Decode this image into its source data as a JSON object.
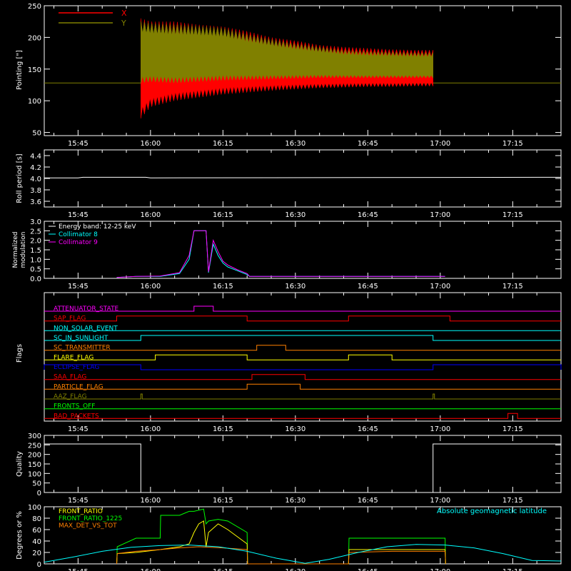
{
  "time_axis": {
    "tick_labels": [
      "15:45",
      "16:00",
      "16:15",
      "16:30",
      "16:45",
      "17:00",
      "17:15"
    ],
    "tick_minutes": [
      945,
      960,
      975,
      990,
      1005,
      1020,
      1035
    ],
    "range_minutes": [
      938,
      1045
    ]
  },
  "colors": {
    "white": "#ffffff",
    "red": "#ff0000",
    "olive": "#808000",
    "cyan": "#00ffff",
    "magenta": "#ff00ff",
    "green": "#00ff00",
    "yellow": "#ffff00",
    "orange": "#ff8000",
    "blue": "#0000ff"
  },
  "chart_data": [
    {
      "id": "pointing",
      "type": "area",
      "ylabel": "Pointing [\"]",
      "ylim": [
        45,
        250
      ],
      "yticks": [
        50,
        100,
        150,
        200,
        250
      ],
      "legend": [
        "X",
        "Y"
      ],
      "legend_position": "top-left",
      "baseline_value": 128,
      "series": [
        {
          "name": "X",
          "color": "#ff0000",
          "x": [
            958,
            960,
            965,
            970,
            975,
            980,
            985,
            990,
            995,
            1000,
            1005,
            1010,
            1015,
            1018.5
          ],
          "low": [
            72,
            90,
            100,
            105,
            110,
            113,
            116,
            118,
            120,
            121,
            122,
            122,
            123,
            123
          ],
          "high": [
            230,
            225,
            225,
            220,
            217,
            210,
            200,
            195,
            188,
            185,
            183,
            181,
            180,
            180
          ]
        },
        {
          "name": "Y",
          "color": "#808000",
          "x": [
            958,
            960,
            965,
            970,
            975,
            980,
            985,
            990,
            995,
            1000,
            1005,
            1010,
            1015,
            1018.5
          ],
          "low": [
            128,
            130,
            128,
            130,
            132,
            133,
            134,
            135,
            136,
            136,
            136,
            136,
            136,
            136
          ],
          "high": [
            225,
            222,
            220,
            218,
            215,
            205,
            197,
            190,
            185,
            180,
            178,
            177,
            176,
            176
          ]
        }
      ]
    },
    {
      "id": "roll",
      "type": "line",
      "ylabel": "Roll period [s]",
      "ylim": [
        3.5,
        4.5
      ],
      "yticks": [
        3.6,
        3.8,
        4.0,
        4.2,
        4.4
      ],
      "series": [
        {
          "name": "",
          "color": "#ffffff",
          "x": [
            938,
            945,
            946,
            959,
            960,
            1045
          ],
          "y": [
            4.01,
            4.01,
            4.02,
            4.02,
            4.01,
            4.02
          ]
        }
      ]
    },
    {
      "id": "modulation",
      "type": "line",
      "ylabel": "Normalized modulation",
      "ylim": [
        0,
        3.0
      ],
      "yticks": [
        0.0,
        0.5,
        1.0,
        1.5,
        2.0,
        2.5,
        3.0
      ],
      "legend": [
        "Energy band: 12-25 keV",
        "Collimator 8",
        "Collimator 9"
      ],
      "legend_colors": [
        "#ffffff",
        "#00ffff",
        "#ff00ff"
      ],
      "series": [
        {
          "name": "Collimator 8",
          "color": "#00ffff",
          "x": [
            953,
            957,
            962,
            966,
            968,
            969,
            970,
            971,
            971.5,
            972,
            973,
            974,
            975,
            976,
            978,
            980,
            980.5,
            1001,
            1021
          ],
          "y": [
            0.05,
            0.1,
            0.1,
            0.25,
            1.0,
            2.5,
            2.5,
            2.5,
            2.5,
            0.3,
            1.8,
            1.2,
            0.8,
            0.6,
            0.4,
            0.2,
            0.1,
            0.1,
            0.1
          ]
        },
        {
          "name": "Collimator 9",
          "color": "#ff00ff",
          "x": [
            953,
            957,
            962,
            966,
            968,
            969,
            970,
            971,
            971.5,
            972,
            973,
            974,
            975,
            976,
            978,
            980,
            980.5,
            1001,
            1021
          ],
          "y": [
            0.05,
            0.1,
            0.12,
            0.3,
            1.2,
            2.5,
            2.5,
            2.5,
            2.5,
            0.35,
            2.0,
            1.4,
            0.9,
            0.7,
            0.45,
            0.25,
            0.1,
            0.1,
            0.1
          ]
        }
      ]
    },
    {
      "id": "flags",
      "type": "line",
      "ylabel": "Flags",
      "rows": [
        {
          "label": "ATTENUATOR_STATE",
          "color": "#ff00ff",
          "on": [
            [
              969,
              973
            ]
          ]
        },
        {
          "label": "SAP_FLAG",
          "color": "#ff0000",
          "on": [
            [
              953,
              980
            ],
            [
              1001,
              1022
            ]
          ]
        },
        {
          "label": "NON_SOLAR_EVENT",
          "color": "#00ffff",
          "on": []
        },
        {
          "label": "SC_IN_SUNLIGHT",
          "color": "#00ffff",
          "on": [
            [
              958,
              1018.5
            ]
          ]
        },
        {
          "label": "SC_TRANSMITTER",
          "color": "#ff8000",
          "on": [
            [
              982,
              988
            ]
          ]
        },
        {
          "label": "FLARE_FLAG",
          "color": "#ffff00",
          "on": [
            [
              961,
              980
            ],
            [
              1001,
              1010
            ]
          ]
        },
        {
          "label": "ECLIPSE_FLAG",
          "color": "#0000ff",
          "on": [
            [
              938,
              958
            ],
            [
              1018.5,
              1045
            ]
          ]
        },
        {
          "label": "SAA_FLAG",
          "color": "#ff0000",
          "on": [
            [
              981,
              992
            ]
          ]
        },
        {
          "label": "PARTICLE_FLAG",
          "color": "#ff8000",
          "on": [
            [
              980,
              991
            ]
          ]
        },
        {
          "label": "AAZ_FLAG",
          "color": "#808000",
          "spikes": [
            958,
            1018.5
          ]
        },
        {
          "label": "FRONTS_OFF",
          "color": "#00ff00",
          "on": []
        },
        {
          "label": "BAD_PACKETS",
          "color": "#ff0000",
          "on": [
            [
              1034,
              1036
            ]
          ]
        }
      ]
    },
    {
      "id": "quality",
      "type": "line",
      "ylabel": "Quality",
      "ylim": [
        0,
        300
      ],
      "yticks": [
        0,
        50,
        100,
        150,
        200,
        250,
        300
      ],
      "series": [
        {
          "name": "",
          "color": "#ffffff",
          "x": [
            938,
            958,
            958,
            1018.5,
            1018.5,
            1045
          ],
          "y": [
            255,
            255,
            0,
            0,
            255,
            255
          ]
        }
      ]
    },
    {
      "id": "geomag",
      "type": "line",
      "ylabel": "Degrees or %",
      "ylim": [
        0,
        100
      ],
      "yticks": [
        0,
        20,
        40,
        60,
        80,
        100
      ],
      "legend": [
        "FRONT_RATIO",
        "FRONT_RATIO_1225",
        "MAX_DET_VS_TOT"
      ],
      "legend_colors": [
        "#ffff00",
        "#00ff00",
        "#ff8000"
      ],
      "annotation": "Absolute geomagnetic latitude",
      "series": [
        {
          "name": "FRONT_RATIO_1225",
          "color": "#00ff00",
          "x": [
            953,
            953.1,
            957,
            962,
            962.1,
            966,
            968,
            969,
            971,
            971.5,
            972,
            974,
            976,
            980,
            980.1,
            1001,
            1001.1,
            1010,
            1021,
            1021.1
          ],
          "y": [
            0,
            30,
            45,
            45,
            85,
            85,
            92,
            92,
            96,
            70,
            75,
            78,
            75,
            55,
            0,
            0,
            45,
            45,
            45,
            0
          ]
        },
        {
          "name": "FRONT_RATIO",
          "color": "#ffff00",
          "x": [
            953,
            953.1,
            957,
            962,
            966,
            968,
            969,
            970,
            971,
            971.5,
            972,
            974,
            976,
            980,
            980.1,
            1001,
            1001.1,
            1010,
            1021,
            1021.1
          ],
          "y": [
            0,
            18,
            20,
            25,
            30,
            35,
            55,
            70,
            75,
            30,
            55,
            70,
            60,
            35,
            0,
            0,
            25,
            25,
            25,
            0
          ]
        },
        {
          "name": "MAX_DET_VS_TOT",
          "color": "#ff8000",
          "x": [
            953,
            953.1,
            957,
            962,
            966,
            970,
            975,
            980,
            980.1,
            1001,
            1001.1,
            1010,
            1021,
            1021.1
          ],
          "y": [
            0,
            18,
            22,
            25,
            28,
            30,
            28,
            25,
            0,
            0,
            20,
            22,
            22,
            0
          ]
        },
        {
          "name": "Absolute geomagnetic latitude",
          "color": "#00ffff",
          "x": [
            938,
            944,
            950,
            956,
            962,
            968,
            974,
            980,
            986,
            992,
            997,
            1003,
            1009,
            1015,
            1021,
            1027,
            1033,
            1039,
            1045
          ],
          "y": [
            3,
            12,
            22,
            29,
            32,
            33,
            30,
            22,
            10,
            1,
            8,
            20,
            30,
            34,
            33,
            28,
            18,
            6,
            5
          ]
        }
      ]
    }
  ]
}
